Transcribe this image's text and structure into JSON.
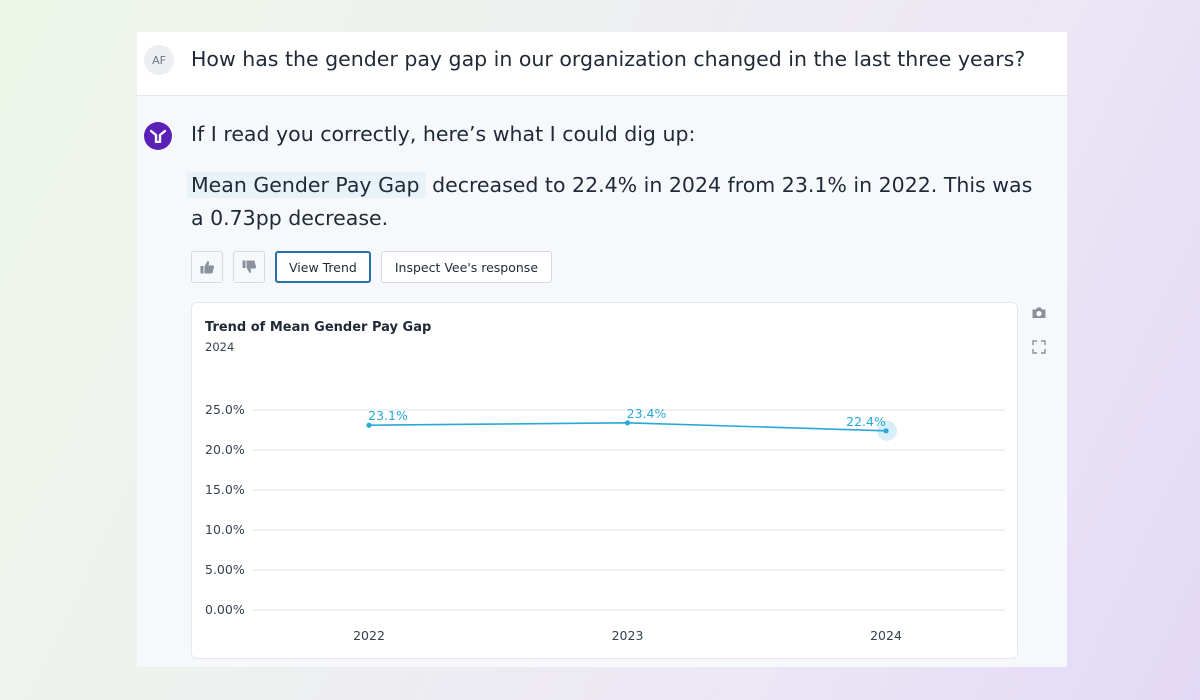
{
  "user": {
    "initials": "AF",
    "question": "How has the gender pay gap in our organization changed in the last three years?"
  },
  "bot": {
    "avatar_icon": "vee-logo-icon",
    "intro": "If I read you correctly, here’s what I could dig up:",
    "metric_name": "Mean Gender Pay Gap",
    "answer_rest": " decreased to 22.4% in 2024 from 23.1% in 2022. This was a 0.73pp decrease."
  },
  "actions": {
    "thumbs_up_icon": "thumbs-up-icon",
    "thumbs_down_icon": "thumbs-down-icon",
    "view_trend_label": "View Trend",
    "inspect_label": "Inspect Vee's response"
  },
  "side_tools": {
    "camera_icon": "camera-icon",
    "expand_icon": "expand-icon"
  },
  "colors": {
    "accent": "#2b6fa8",
    "line": "#29a8d8",
    "bot_avatar": "#5b21b6"
  },
  "chart_data": {
    "type": "line",
    "title": "Trend of Mean Gender Pay Gap",
    "subtitle": "2024",
    "categories": [
      "2022",
      "2023",
      "2024"
    ],
    "series": [
      {
        "values": [
          23.1,
          23.4,
          22.4
        ],
        "labels": [
          "23.1%",
          "23.4%",
          "22.4%"
        ]
      }
    ],
    "y_ticks": [
      "0.00%",
      "5.00%",
      "10.0%",
      "15.0%",
      "20.0%",
      "25.0%"
    ],
    "ylim": [
      0,
      25
    ],
    "grid": true,
    "highlighted_point": "2024"
  }
}
